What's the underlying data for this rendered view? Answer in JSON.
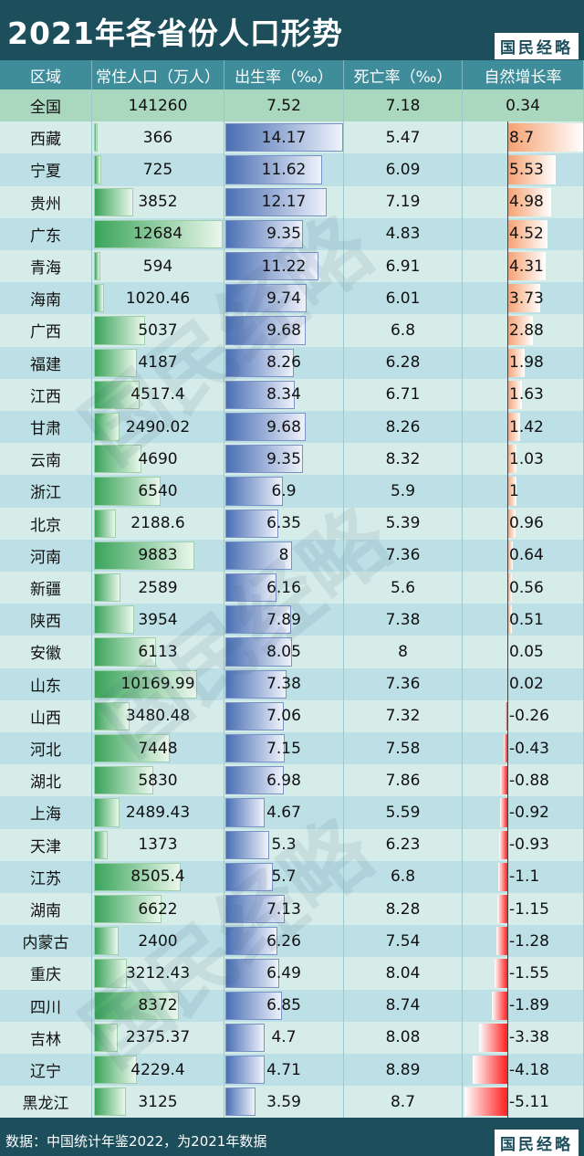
{
  "header": {
    "title": "2021年各省份人口形势",
    "brand": "国民经略"
  },
  "footer": {
    "source": "数据：中国统计年鉴2022，为2021年数据",
    "brand": "国民经略"
  },
  "watermark": "国民经略",
  "colors": {
    "header_bg": "#1d4e5c",
    "header_row_bg": "#3f8d9b",
    "row_a": "#d6ece9",
    "row_b": "#bde0e6",
    "first_row": "#a9d8bf",
    "pop_bar": "#3aa45a",
    "birth_bar": "#4a6fb4",
    "inc_pos": "#f5a070",
    "inc_neg": "#ff2020"
  },
  "chart_data": {
    "type": "table",
    "columns": [
      "区域",
      "常住人口（万人）",
      "出生率（‰）",
      "死亡率（‰）",
      "自然增长率"
    ],
    "rows": [
      {
        "region": "全国",
        "pop": "141260",
        "birth": "7.52",
        "death": "7.18",
        "inc": "0.34"
      },
      {
        "region": "西藏",
        "pop": "366",
        "birth": "14.17",
        "death": "5.47",
        "inc": "8.7"
      },
      {
        "region": "宁夏",
        "pop": "725",
        "birth": "11.62",
        "death": "6.09",
        "inc": "5.53"
      },
      {
        "region": "贵州",
        "pop": "3852",
        "birth": "12.17",
        "death": "7.19",
        "inc": "4.98"
      },
      {
        "region": "广东",
        "pop": "12684",
        "birth": "9.35",
        "death": "4.83",
        "inc": "4.52"
      },
      {
        "region": "青海",
        "pop": "594",
        "birth": "11.22",
        "death": "6.91",
        "inc": "4.31"
      },
      {
        "region": "海南",
        "pop": "1020.46",
        "birth": "9.74",
        "death": "6.01",
        "inc": "3.73"
      },
      {
        "region": "广西",
        "pop": "5037",
        "birth": "9.68",
        "death": "6.8",
        "inc": "2.88"
      },
      {
        "region": "福建",
        "pop": "4187",
        "birth": "8.26",
        "death": "6.28",
        "inc": "1.98"
      },
      {
        "region": "江西",
        "pop": "4517.4",
        "birth": "8.34",
        "death": "6.71",
        "inc": "1.63"
      },
      {
        "region": "甘肃",
        "pop": "2490.02",
        "birth": "9.68",
        "death": "8.26",
        "inc": "1.42"
      },
      {
        "region": "云南",
        "pop": "4690",
        "birth": "9.35",
        "death": "8.32",
        "inc": "1.03"
      },
      {
        "region": "浙江",
        "pop": "6540",
        "birth": "6.9",
        "death": "5.9",
        "inc": "1"
      },
      {
        "region": "北京",
        "pop": "2188.6",
        "birth": "6.35",
        "death": "5.39",
        "inc": "0.96"
      },
      {
        "region": "河南",
        "pop": "9883",
        "birth": "8",
        "death": "7.36",
        "inc": "0.64"
      },
      {
        "region": "新疆",
        "pop": "2589",
        "birth": "6.16",
        "death": "5.6",
        "inc": "0.56"
      },
      {
        "region": "陕西",
        "pop": "3954",
        "birth": "7.89",
        "death": "7.38",
        "inc": "0.51"
      },
      {
        "region": "安徽",
        "pop": "6113",
        "birth": "8.05",
        "death": "8",
        "inc": "0.05"
      },
      {
        "region": "山东",
        "pop": "10169.99",
        "birth": "7.38",
        "death": "7.36",
        "inc": "0.02"
      },
      {
        "region": "山西",
        "pop": "3480.48",
        "birth": "7.06",
        "death": "7.32",
        "inc": "-0.26"
      },
      {
        "region": "河北",
        "pop": "7448",
        "birth": "7.15",
        "death": "7.58",
        "inc": "-0.43"
      },
      {
        "region": "湖北",
        "pop": "5830",
        "birth": "6.98",
        "death": "7.86",
        "inc": "-0.88"
      },
      {
        "region": "上海",
        "pop": "2489.43",
        "birth": "4.67",
        "death": "5.59",
        "inc": "-0.92"
      },
      {
        "region": "天津",
        "pop": "1373",
        "birth": "5.3",
        "death": "6.23",
        "inc": "-0.93"
      },
      {
        "region": "江苏",
        "pop": "8505.4",
        "birth": "5.7",
        "death": "6.8",
        "inc": "-1.1"
      },
      {
        "region": "湖南",
        "pop": "6622",
        "birth": "7.13",
        "death": "8.28",
        "inc": "-1.15"
      },
      {
        "region": "内蒙古",
        "pop": "2400",
        "birth": "6.26",
        "death": "7.54",
        "inc": "-1.28"
      },
      {
        "region": "重庆",
        "pop": "3212.43",
        "birth": "6.49",
        "death": "8.04",
        "inc": "-1.55"
      },
      {
        "region": "四川",
        "pop": "8372",
        "birth": "6.85",
        "death": "8.74",
        "inc": "-1.89"
      },
      {
        "region": "吉林",
        "pop": "2375.37",
        "birth": "4.7",
        "death": "8.08",
        "inc": "-3.38"
      },
      {
        "region": "辽宁",
        "pop": "4229.4",
        "birth": "4.71",
        "death": "8.89",
        "inc": "-4.18"
      },
      {
        "region": "黑龙江",
        "pop": "3125",
        "birth": "3.59",
        "death": "8.7",
        "inc": "-5.11"
      }
    ]
  }
}
